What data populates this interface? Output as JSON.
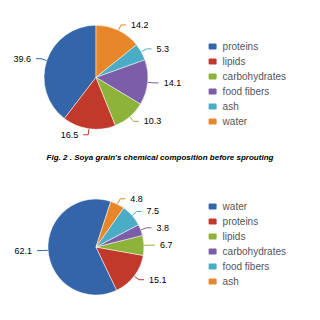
{
  "chart_data": [
    {
      "type": "pie",
      "title": "Fig. 2 . Soya grain's chemical composition before sprouting",
      "categories": [
        "proteins",
        "lipids",
        "carbohydrates",
        "food fibers",
        "ash",
        "water"
      ],
      "values": [
        39.6,
        16.5,
        10.3,
        14.1,
        5.3,
        14.2
      ],
      "colors": [
        "#3465a8",
        "#c0392b",
        "#8db33a",
        "#7b5ea7",
        "#4bacc6",
        "#e8862a"
      ],
      "data_labels": true,
      "legend": "right"
    },
    {
      "type": "pie",
      "categories": [
        "water",
        "proteins",
        "lipids",
        "carbohydrates",
        "food fibers",
        "ash"
      ],
      "values": [
        62.1,
        15.1,
        6.7,
        3.8,
        7.5,
        4.8
      ],
      "colors": [
        "#3465a8",
        "#c0392b",
        "#8db33a",
        "#7b5ea7",
        "#4bacc6",
        "#e8862a"
      ],
      "data_labels": true,
      "legend": "right"
    }
  ]
}
